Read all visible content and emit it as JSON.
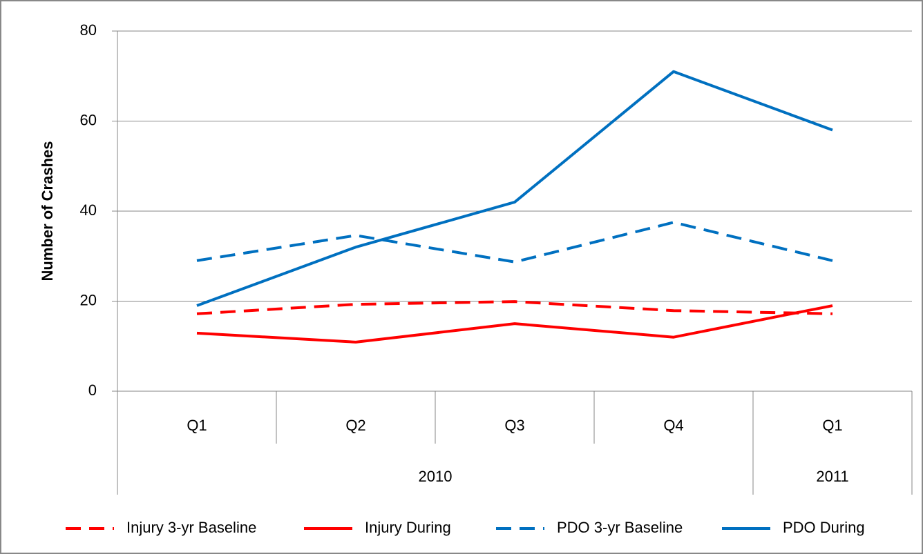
{
  "chart_data": {
    "type": "line",
    "y_label": "Number of Crashes",
    "categories": [
      "Q1",
      "Q2",
      "Q3",
      "Q4",
      "Q1"
    ],
    "x_groups": [
      "2010",
      "2010",
      "2010",
      "2010",
      "2011"
    ],
    "ylim": [
      0,
      80
    ],
    "yticks": [
      0,
      20,
      40,
      60,
      80
    ],
    "grid": true,
    "legend": "bottom",
    "series": [
      {
        "name": "Injury 3-yr Baseline",
        "color": "#ff0000",
        "dashed": true,
        "values": [
          17.2,
          19.3,
          19.9,
          17.9,
          17.2
        ]
      },
      {
        "name": "Injury During",
        "color": "#ff0000",
        "dashed": false,
        "values": [
          12.9,
          10.9,
          15,
          12,
          19
        ]
      },
      {
        "name": "PDO 3-yr Baseline",
        "color": "#0070c0",
        "dashed": true,
        "values": [
          29,
          34.6,
          28.7,
          37.5,
          29
        ]
      },
      {
        "name": "PDO During",
        "color": "#0070c0",
        "dashed": false,
        "values": [
          19,
          32,
          42,
          71,
          58
        ]
      }
    ]
  }
}
